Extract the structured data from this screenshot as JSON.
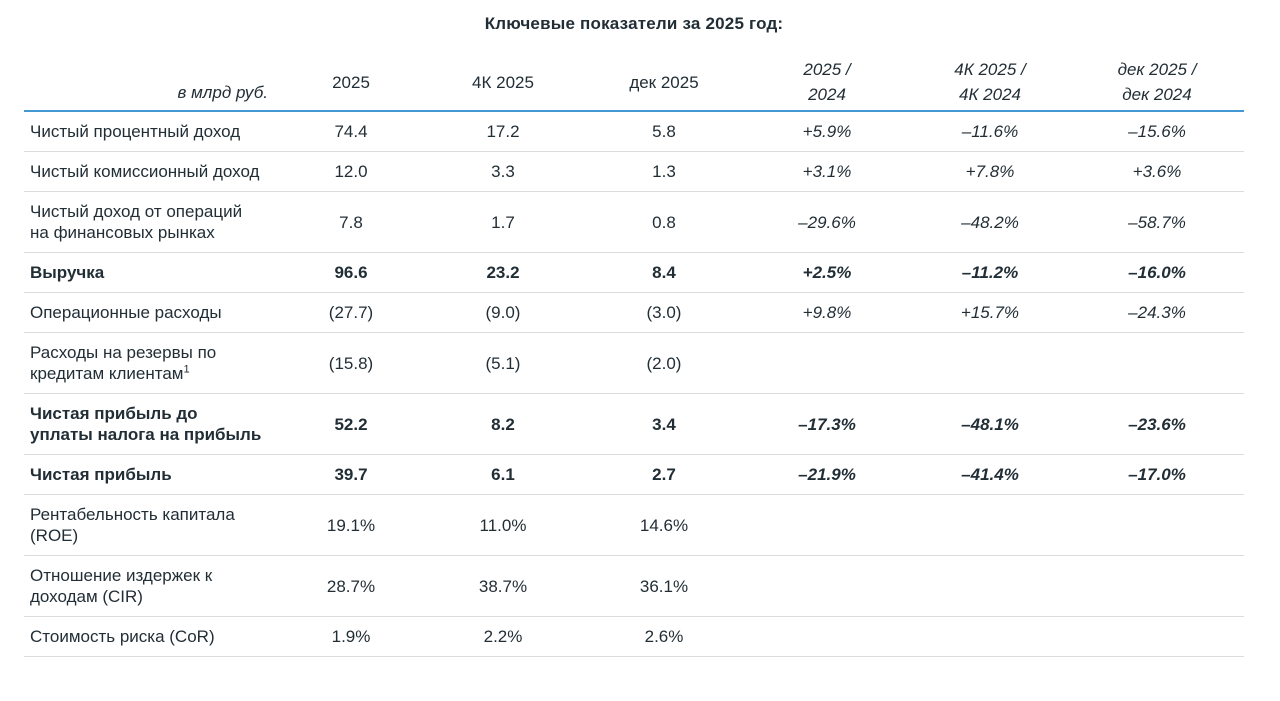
{
  "title": "Ключевые показатели за 2025 год:",
  "colors": {
    "header_rule": "#4397d2",
    "row_rule": "#d9dcde",
    "text": "#222e36",
    "background": "#ffffff"
  },
  "table": {
    "headers": [
      {
        "line1": "в млрд руб."
      },
      {
        "line1": "2025"
      },
      {
        "line1": "4К 2025"
      },
      {
        "line1": "дек 2025"
      },
      {
        "line1": "2025 /",
        "line2": "2024"
      },
      {
        "line1": "4К 2025 /",
        "line2": "4К 2024"
      },
      {
        "line1": "дек 2025 /",
        "line2": "дек 2024"
      }
    ],
    "rows": [
      {
        "label": "Чистый процентный доход",
        "bold": false,
        "values": [
          "74.4",
          "17.2",
          "5.8",
          "+5.9%",
          "–11.6%",
          "–15.6%"
        ]
      },
      {
        "label": "Чистый комиссионный доход",
        "bold": false,
        "values": [
          "12.0",
          "3.3",
          "1.3",
          "+3.1%",
          "+7.8%",
          "+3.6%"
        ]
      },
      {
        "label": "Чистый доход от операций на финансовых рынках",
        "bold": false,
        "values": [
          "7.8",
          "1.7",
          "0.8",
          "–29.6%",
          "–48.2%",
          "–58.7%"
        ]
      },
      {
        "label": "Выручка",
        "bold": true,
        "values": [
          "96.6",
          "23.2",
          "8.4",
          "+2.5%",
          "–11.2%",
          "–16.0%"
        ]
      },
      {
        "label": "Операционные расходы",
        "bold": false,
        "values": [
          "(27.7)",
          "(9.0)",
          "(3.0)",
          "+9.8%",
          "+15.7%",
          "–24.3%"
        ]
      },
      {
        "label": "Расходы на резервы по кредитам клиентам",
        "sup": "1",
        "bold": false,
        "values": [
          "(15.8)",
          "(5.1)",
          "(2.0)",
          "",
          "",
          ""
        ]
      },
      {
        "label": "Чистая прибыль до уплаты налога на прибыль",
        "bold": true,
        "values": [
          "52.2",
          "8.2",
          "3.4",
          "–17.3%",
          "–48.1%",
          "–23.6%"
        ]
      },
      {
        "label": "Чистая прибыль",
        "bold": true,
        "values": [
          "39.7",
          "6.1",
          "2.7",
          "–21.9%",
          "–41.4%",
          "–17.0%"
        ]
      },
      {
        "label": "Рентабельность капитала (ROE)",
        "bold": false,
        "values": [
          "19.1%",
          "11.0%",
          "14.6%",
          "",
          "",
          ""
        ]
      },
      {
        "label": "Отношение издержек к доходам (CIR)",
        "bold": false,
        "values": [
          "28.7%",
          "38.7%",
          "36.1%",
          "",
          "",
          ""
        ]
      },
      {
        "label": "Стоимость риска (CoR)",
        "bold": false,
        "values": [
          "1.9%",
          "2.2%",
          "2.6%",
          "",
          "",
          ""
        ]
      }
    ]
  }
}
